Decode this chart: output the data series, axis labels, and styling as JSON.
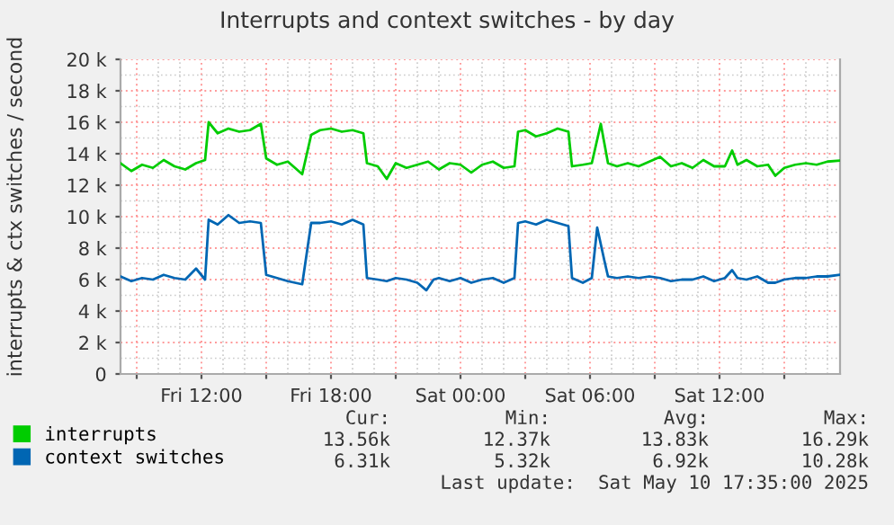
{
  "chart_data": {
    "type": "line",
    "title": "Interrupts and context switches - by day",
    "ylabel": "interrupts & ctx switches / second",
    "xlim": [
      "2025-05-09T08:15",
      "2025-05-10T17:35"
    ],
    "xticks": [
      {
        "value": "2025-05-09T09:00",
        "label": null
      },
      {
        "value": "2025-05-09T12:00",
        "label": "Fri 12:00"
      },
      {
        "value": "2025-05-09T15:00",
        "label": null
      },
      {
        "value": "2025-05-09T18:00",
        "label": "Fri 18:00"
      },
      {
        "value": "2025-05-09T21:00",
        "label": null
      },
      {
        "value": "2025-05-10T00:00",
        "label": "Sat 00:00"
      },
      {
        "value": "2025-05-10T03:00",
        "label": null
      },
      {
        "value": "2025-05-10T06:00",
        "label": "Sat 06:00"
      },
      {
        "value": "2025-05-10T09:00",
        "label": null
      },
      {
        "value": "2025-05-10T12:00",
        "label": "Sat 12:00"
      },
      {
        "value": "2025-05-10T15:00",
        "label": null
      }
    ],
    "ylim": [
      0,
      20000
    ],
    "yticks": [
      0,
      {
        "value": 2000,
        "label": "2 k"
      },
      {
        "value": 4000,
        "label": "4 k"
      },
      {
        "value": 6000,
        "label": "6 k"
      },
      {
        "value": 8000,
        "label": "8 k"
      },
      {
        "value": 10000,
        "label": "10 k"
      },
      {
        "value": 12000,
        "label": "12 k"
      },
      {
        "value": 14000,
        "label": "14 k"
      },
      {
        "value": 16000,
        "label": "16 k"
      },
      {
        "value": 18000,
        "label": "18 k"
      },
      {
        "value": 20000,
        "label": "20 k"
      }
    ],
    "grid": true,
    "legend": "bottom left",
    "marker": "none",
    "line_style": "solid",
    "series": [
      {
        "name": "interrupts",
        "color": "#00cc00",
        "x": [
          "2025-05-09T08:15",
          "2025-05-09T08:45",
          "2025-05-09T09:15",
          "2025-05-09T09:45",
          "2025-05-09T10:15",
          "2025-05-09T10:45",
          "2025-05-09T11:15",
          "2025-05-09T11:45",
          "2025-05-09T12:10",
          "2025-05-09T12:20",
          "2025-05-09T12:45",
          "2025-05-09T13:15",
          "2025-05-09T13:45",
          "2025-05-09T14:15",
          "2025-05-09T14:45",
          "2025-05-09T15:00",
          "2025-05-09T15:30",
          "2025-05-09T16:00",
          "2025-05-09T16:40",
          "2025-05-09T17:05",
          "2025-05-09T17:30",
          "2025-05-09T18:00",
          "2025-05-09T18:30",
          "2025-05-09T19:00",
          "2025-05-09T19:30",
          "2025-05-09T19:40",
          "2025-05-09T20:10",
          "2025-05-09T20:35",
          "2025-05-09T21:00",
          "2025-05-09T21:30",
          "2025-05-09T22:00",
          "2025-05-09T22:30",
          "2025-05-09T23:00",
          "2025-05-09T23:30",
          "2025-05-10T00:00",
          "2025-05-10T00:30",
          "2025-05-10T01:00",
          "2025-05-10T01:30",
          "2025-05-10T02:00",
          "2025-05-10T02:30",
          "2025-05-10T02:40",
          "2025-05-10T03:00",
          "2025-05-10T03:30",
          "2025-05-10T04:00",
          "2025-05-10T04:30",
          "2025-05-10T05:00",
          "2025-05-10T05:10",
          "2025-05-10T05:40",
          "2025-05-10T06:05",
          "2025-05-10T06:30",
          "2025-05-10T06:50",
          "2025-05-10T07:15",
          "2025-05-10T07:45",
          "2025-05-10T08:15",
          "2025-05-10T08:45",
          "2025-05-10T09:15",
          "2025-05-10T09:45",
          "2025-05-10T10:15",
          "2025-05-10T10:45",
          "2025-05-10T11:15",
          "2025-05-10T11:45",
          "2025-05-10T12:15",
          "2025-05-10T12:35",
          "2025-05-10T12:50",
          "2025-05-10T13:15",
          "2025-05-10T13:45",
          "2025-05-10T14:15",
          "2025-05-10T14:35",
          "2025-05-10T15:00",
          "2025-05-10T15:30",
          "2025-05-10T16:00",
          "2025-05-10T16:30",
          "2025-05-10T17:00",
          "2025-05-10T17:35"
        ],
        "values": [
          13400,
          12900,
          13300,
          13100,
          13600,
          13200,
          13000,
          13400,
          13600,
          16000,
          15300,
          15600,
          15400,
          15500,
          15900,
          13700,
          13300,
          13500,
          12700,
          15200,
          15500,
          15600,
          15400,
          15500,
          15300,
          13400,
          13200,
          12400,
          13400,
          13100,
          13300,
          13500,
          13000,
          13400,
          13300,
          12800,
          13300,
          13500,
          13100,
          13200,
          15400,
          15500,
          15100,
          15300,
          15600,
          15400,
          13200,
          13300,
          13400,
          15900,
          13400,
          13200,
          13400,
          13200,
          13500,
          13800,
          13200,
          13400,
          13100,
          13600,
          13200,
          13200,
          14200,
          13300,
          13600,
          13200,
          13300,
          12600,
          13100,
          13300,
          13400,
          13300,
          13500,
          13560
        ]
      },
      {
        "name": "context switches",
        "color": "#0066b3",
        "x": [
          "2025-05-09T08:15",
          "2025-05-09T08:45",
          "2025-05-09T09:15",
          "2025-05-09T09:45",
          "2025-05-09T10:15",
          "2025-05-09T10:45",
          "2025-05-09T11:15",
          "2025-05-09T11:45",
          "2025-05-09T12:10",
          "2025-05-09T12:20",
          "2025-05-09T12:45",
          "2025-05-09T13:15",
          "2025-05-09T13:45",
          "2025-05-09T14:15",
          "2025-05-09T14:45",
          "2025-05-09T15:00",
          "2025-05-09T15:30",
          "2025-05-09T16:00",
          "2025-05-09T16:40",
          "2025-05-09T17:05",
          "2025-05-09T17:30",
          "2025-05-09T18:00",
          "2025-05-09T18:30",
          "2025-05-09T19:00",
          "2025-05-09T19:30",
          "2025-05-09T19:40",
          "2025-05-09T20:10",
          "2025-05-09T20:35",
          "2025-05-09T21:00",
          "2025-05-09T21:30",
          "2025-05-09T22:00",
          "2025-05-09T22:25",
          "2025-05-09T22:45",
          "2025-05-09T23:00",
          "2025-05-09T23:30",
          "2025-05-10T00:00",
          "2025-05-10T00:30",
          "2025-05-10T01:00",
          "2025-05-10T01:30",
          "2025-05-10T02:00",
          "2025-05-10T02:30",
          "2025-05-10T02:40",
          "2025-05-10T03:00",
          "2025-05-10T03:30",
          "2025-05-10T04:00",
          "2025-05-10T04:30",
          "2025-05-10T05:00",
          "2025-05-10T05:10",
          "2025-05-10T05:40",
          "2025-05-10T06:05",
          "2025-05-10T06:20",
          "2025-05-10T06:40",
          "2025-05-10T06:50",
          "2025-05-10T07:15",
          "2025-05-10T07:45",
          "2025-05-10T08:15",
          "2025-05-10T08:45",
          "2025-05-10T09:15",
          "2025-05-10T09:45",
          "2025-05-10T10:15",
          "2025-05-10T10:45",
          "2025-05-10T11:15",
          "2025-05-10T11:45",
          "2025-05-10T12:15",
          "2025-05-10T12:35",
          "2025-05-10T12:50",
          "2025-05-10T13:15",
          "2025-05-10T13:45",
          "2025-05-10T14:15",
          "2025-05-10T14:35",
          "2025-05-10T15:00",
          "2025-05-10T15:30",
          "2025-05-10T16:00",
          "2025-05-10T16:30",
          "2025-05-10T17:00",
          "2025-05-10T17:35"
        ],
        "values": [
          6200,
          5900,
          6100,
          6000,
          6300,
          6100,
          6000,
          6700,
          6000,
          9800,
          9500,
          10100,
          9600,
          9700,
          9600,
          6300,
          6100,
          5900,
          5700,
          9600,
          9600,
          9700,
          9500,
          9800,
          9500,
          6100,
          6000,
          5900,
          6100,
          6000,
          5800,
          5320,
          6000,
          6100,
          5900,
          6100,
          5800,
          6000,
          6100,
          5800,
          6100,
          9600,
          9700,
          9500,
          9800,
          9600,
          9400,
          6100,
          5800,
          6100,
          9300,
          7200,
          6200,
          6100,
          6200,
          6100,
          6200,
          6100,
          5900,
          6000,
          6000,
          6200,
          5900,
          6100,
          6600,
          6100,
          6000,
          6200,
          5800,
          5800,
          6000,
          6100,
          6100,
          6200,
          6200,
          6310
        ]
      }
    ],
    "annotations": [
      "Cur:",
      "Min:",
      "Avg:",
      "Max:",
      "13.56k",
      "12.37k",
      "13.83k",
      "16.29k",
      "6.31k",
      "5.32k",
      "6.92k",
      "10.28k",
      "Last update:  Sat May 10 17:35:00 2025"
    ]
  }
}
